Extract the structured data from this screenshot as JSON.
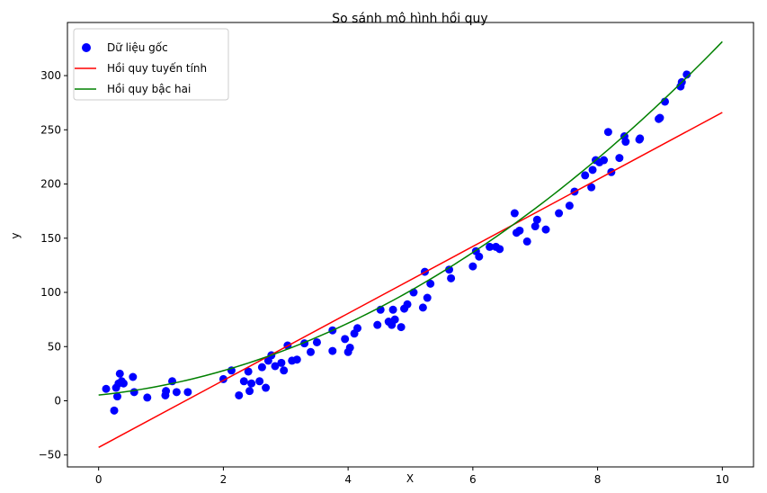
{
  "chart_data": {
    "type": "scatter",
    "title": "So sánh mô hình hồi quy",
    "xlabel": "X",
    "ylabel": "y",
    "xlim": [
      -0.5,
      10.5
    ],
    "ylim": [
      -61,
      349
    ],
    "xticks": [
      0,
      2,
      4,
      6,
      8,
      10
    ],
    "yticks": [
      -50,
      0,
      50,
      100,
      150,
      200,
      250,
      300
    ],
    "grid": false,
    "legend_position": "top-left",
    "series": [
      {
        "name": "Dữ liệu gốc",
        "kind": "scatter",
        "color": "#0000ff",
        "points": [
          [
            0.12,
            11
          ],
          [
            0.25,
            -9
          ],
          [
            0.28,
            12
          ],
          [
            0.3,
            4
          ],
          [
            0.32,
            16
          ],
          [
            0.34,
            25
          ],
          [
            0.37,
            18
          ],
          [
            0.4,
            16
          ],
          [
            0.55,
            22
          ],
          [
            0.57,
            8
          ],
          [
            0.78,
            3
          ],
          [
            1.07,
            5
          ],
          [
            1.08,
            9
          ],
          [
            1.18,
            18
          ],
          [
            1.25,
            8
          ],
          [
            1.43,
            8
          ],
          [
            2.0,
            20
          ],
          [
            2.13,
            28
          ],
          [
            2.25,
            5
          ],
          [
            2.33,
            18
          ],
          [
            2.4,
            27
          ],
          [
            2.42,
            9
          ],
          [
            2.45,
            16
          ],
          [
            2.58,
            18
          ],
          [
            2.62,
            31
          ],
          [
            2.68,
            12
          ],
          [
            2.72,
            37
          ],
          [
            2.77,
            42
          ],
          [
            2.83,
            32
          ],
          [
            2.93,
            35
          ],
          [
            2.97,
            28
          ],
          [
            3.03,
            51
          ],
          [
            3.1,
            37
          ],
          [
            3.18,
            38
          ],
          [
            3.3,
            53
          ],
          [
            3.4,
            45
          ],
          [
            3.5,
            54
          ],
          [
            3.75,
            65
          ],
          [
            3.75,
            46
          ],
          [
            3.95,
            57
          ],
          [
            4.0,
            45
          ],
          [
            4.03,
            49
          ],
          [
            4.1,
            62
          ],
          [
            4.15,
            67
          ],
          [
            4.47,
            70
          ],
          [
            4.52,
            84
          ],
          [
            4.65,
            73
          ],
          [
            4.7,
            70
          ],
          [
            4.72,
            84
          ],
          [
            4.75,
            75
          ],
          [
            4.85,
            68
          ],
          [
            4.9,
            85
          ],
          [
            4.95,
            89
          ],
          [
            5.05,
            100
          ],
          [
            5.2,
            86
          ],
          [
            5.23,
            119
          ],
          [
            5.27,
            95
          ],
          [
            5.32,
            108
          ],
          [
            5.62,
            121
          ],
          [
            5.65,
            113
          ],
          [
            6.0,
            124
          ],
          [
            6.05,
            138
          ],
          [
            6.1,
            133
          ],
          [
            6.27,
            142
          ],
          [
            6.37,
            142
          ],
          [
            6.43,
            140
          ],
          [
            6.67,
            173
          ],
          [
            6.7,
            155
          ],
          [
            6.75,
            157
          ],
          [
            6.87,
            147
          ],
          [
            7.0,
            161
          ],
          [
            7.03,
            167
          ],
          [
            7.17,
            158
          ],
          [
            7.38,
            173
          ],
          [
            7.55,
            180
          ],
          [
            7.63,
            193
          ],
          [
            7.8,
            208
          ],
          [
            7.9,
            197
          ],
          [
            7.92,
            213
          ],
          [
            7.97,
            222
          ],
          [
            8.03,
            220
          ],
          [
            8.1,
            222
          ],
          [
            8.17,
            248
          ],
          [
            8.22,
            211
          ],
          [
            8.35,
            224
          ],
          [
            8.43,
            244
          ],
          [
            8.45,
            239
          ],
          [
            8.67,
            241
          ],
          [
            8.68,
            242
          ],
          [
            8.98,
            260
          ],
          [
            9.0,
            261
          ],
          [
            9.08,
            276
          ],
          [
            9.33,
            290
          ],
          [
            9.35,
            294
          ],
          [
            9.43,
            301
          ]
        ]
      },
      {
        "name": "Hồi quy tuyến tính",
        "kind": "line",
        "color": "#ff0000",
        "points": [
          [
            0,
            -43
          ],
          [
            10,
            266
          ]
        ]
      },
      {
        "name": "Hồi quy bậc hai",
        "kind": "curve",
        "color": "#008000",
        "coefficients": {
          "a": 2.67,
          "b": 5.9,
          "c": 5.3
        },
        "x_range": [
          0,
          10
        ]
      }
    ]
  }
}
